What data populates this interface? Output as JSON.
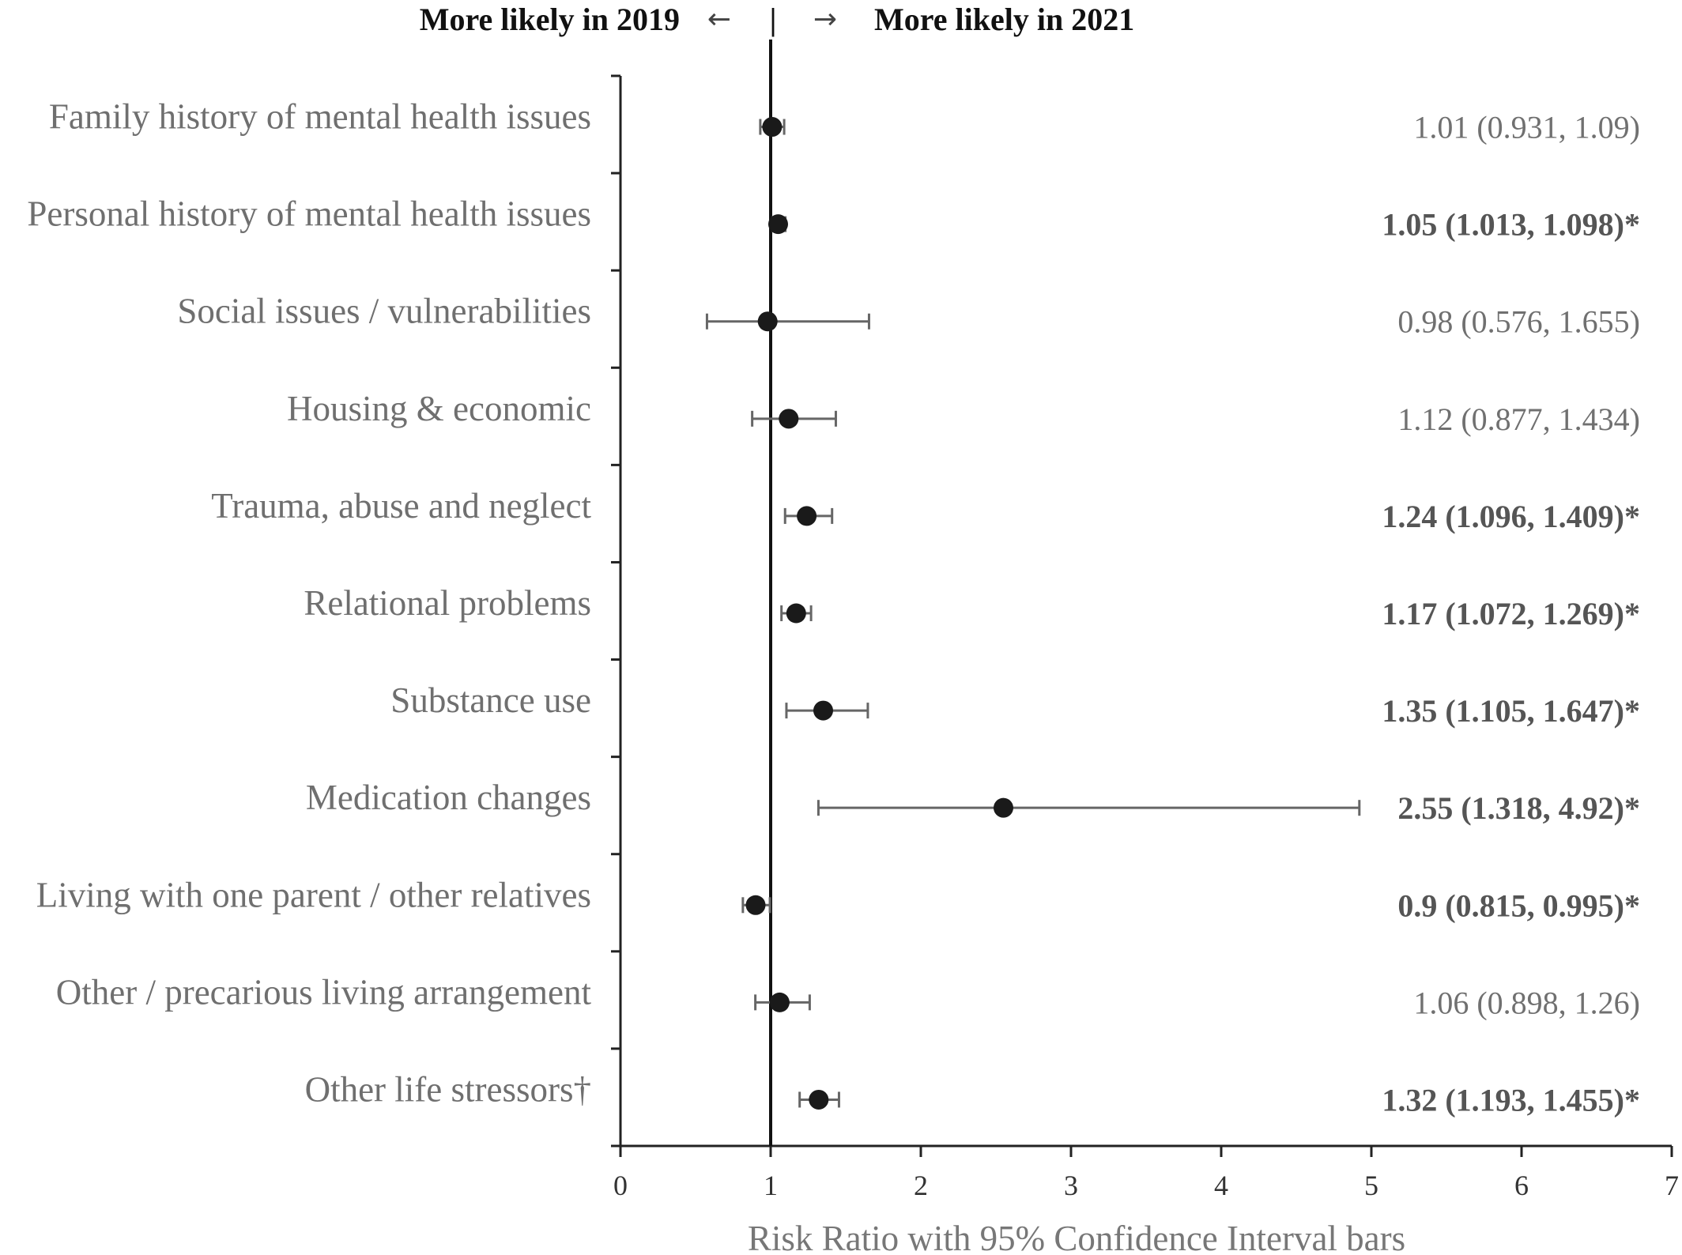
{
  "header": {
    "left": "More likely in 2019",
    "left_arrow": "←",
    "divider": "|",
    "right_arrow": "→",
    "right": "More likely in 2021"
  },
  "chart_data": {
    "type": "scatter",
    "subtype": "forest-plot",
    "xlabel": "Risk Ratio with 95% Confidence  Interval bars",
    "xlim": [
      0,
      7
    ],
    "xticks": [
      0,
      1,
      2,
      3,
      4,
      5,
      6,
      7
    ],
    "reference_line": 1,
    "grid": false,
    "categories": [
      "Family history of mental health issues",
      "Personal history of mental health issues",
      "Social issues / vulnerabilities",
      "Housing & economic",
      "Trauma, abuse and neglect",
      "Relational problems",
      "Substance use",
      "Medication changes",
      "Living with one parent / other relatives",
      "Other / precarious living arrangement",
      "Other life stressors†"
    ],
    "rr": [
      1.01,
      1.05,
      0.98,
      1.12,
      1.24,
      1.17,
      1.35,
      2.55,
      0.9,
      1.06,
      1.32
    ],
    "ci_low": [
      0.931,
      1.013,
      0.576,
      0.877,
      1.096,
      1.072,
      1.105,
      1.318,
      0.815,
      0.898,
      1.193
    ],
    "ci_high": [
      1.09,
      1.098,
      1.655,
      1.434,
      1.409,
      1.269,
      1.647,
      4.92,
      0.995,
      1.26,
      1.455
    ],
    "labels": [
      "1.01 (0.931, 1.09)",
      "1.05 (1.013, 1.098)*",
      "0.98 (0.576, 1.655)",
      "1.12 (0.877, 1.434)",
      "1.24 (1.096, 1.409)*",
      "1.17 (1.072, 1.269)*",
      "1.35 (1.105, 1.647)*",
      "2.55 (1.318, 4.92)*",
      "0.9 (0.815, 0.995)*",
      "1.06 (0.898, 1.26)",
      "1.32 (1.193, 1.455)*"
    ],
    "significant": [
      false,
      true,
      false,
      false,
      true,
      true,
      true,
      true,
      true,
      false,
      true
    ],
    "colors": {
      "point": "#1a1a1a",
      "errorbar": "#666666",
      "axis": "#222222",
      "reference": "#111111"
    }
  }
}
